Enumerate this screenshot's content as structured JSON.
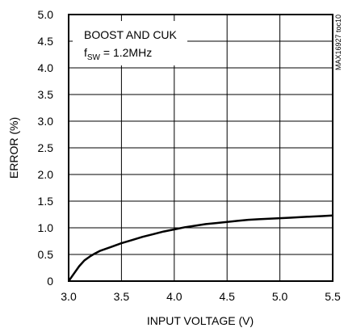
{
  "chart_data": {
    "type": "line",
    "xlabel": "INPUT VOLTAGE (V)",
    "ylabel": "ERROR (%)",
    "xlim": [
      3.0,
      5.5
    ],
    "ylim": [
      0,
      5.0
    ],
    "x_ticks": [
      3.0,
      3.5,
      4.0,
      4.5,
      5.0,
      5.5
    ],
    "x_tick_labels": [
      "3.0",
      "3.5",
      "4.0",
      "4.5",
      "5.0",
      "5.5"
    ],
    "y_ticks": [
      0,
      0.5,
      1.0,
      1.5,
      2.0,
      2.5,
      3.0,
      3.5,
      4.0,
      4.5,
      5.0
    ],
    "y_tick_labels": [
      "0",
      "0.5",
      "1.0",
      "1.5",
      "2.0",
      "2.5",
      "3.0",
      "3.5",
      "4.0",
      "4.5",
      "5.0"
    ],
    "grid": true,
    "annotation": {
      "line1": "BOOST AND CUK",
      "line2_prefix": "f",
      "line2_sub": "SW",
      "line2_suffix": " = 1.2MHz"
    },
    "figure_code": "MAX16927 toc10",
    "series": [
      {
        "x": [
          3.0,
          3.05,
          3.1,
          3.15,
          3.2,
          3.25,
          3.3,
          3.4,
          3.5,
          3.6,
          3.7,
          3.8,
          3.9,
          4.0,
          4.1,
          4.2,
          4.3,
          4.4,
          4.5,
          4.6,
          4.7,
          4.8,
          4.9,
          5.0,
          5.1,
          5.2,
          5.3,
          5.4,
          5.5
        ],
        "y": [
          0.0,
          0.14,
          0.28,
          0.39,
          0.46,
          0.52,
          0.57,
          0.64,
          0.71,
          0.77,
          0.83,
          0.88,
          0.93,
          0.97,
          1.01,
          1.04,
          1.07,
          1.09,
          1.11,
          1.13,
          1.15,
          1.16,
          1.17,
          1.18,
          1.19,
          1.2,
          1.21,
          1.22,
          1.23
        ],
        "color": "#000000"
      }
    ]
  }
}
